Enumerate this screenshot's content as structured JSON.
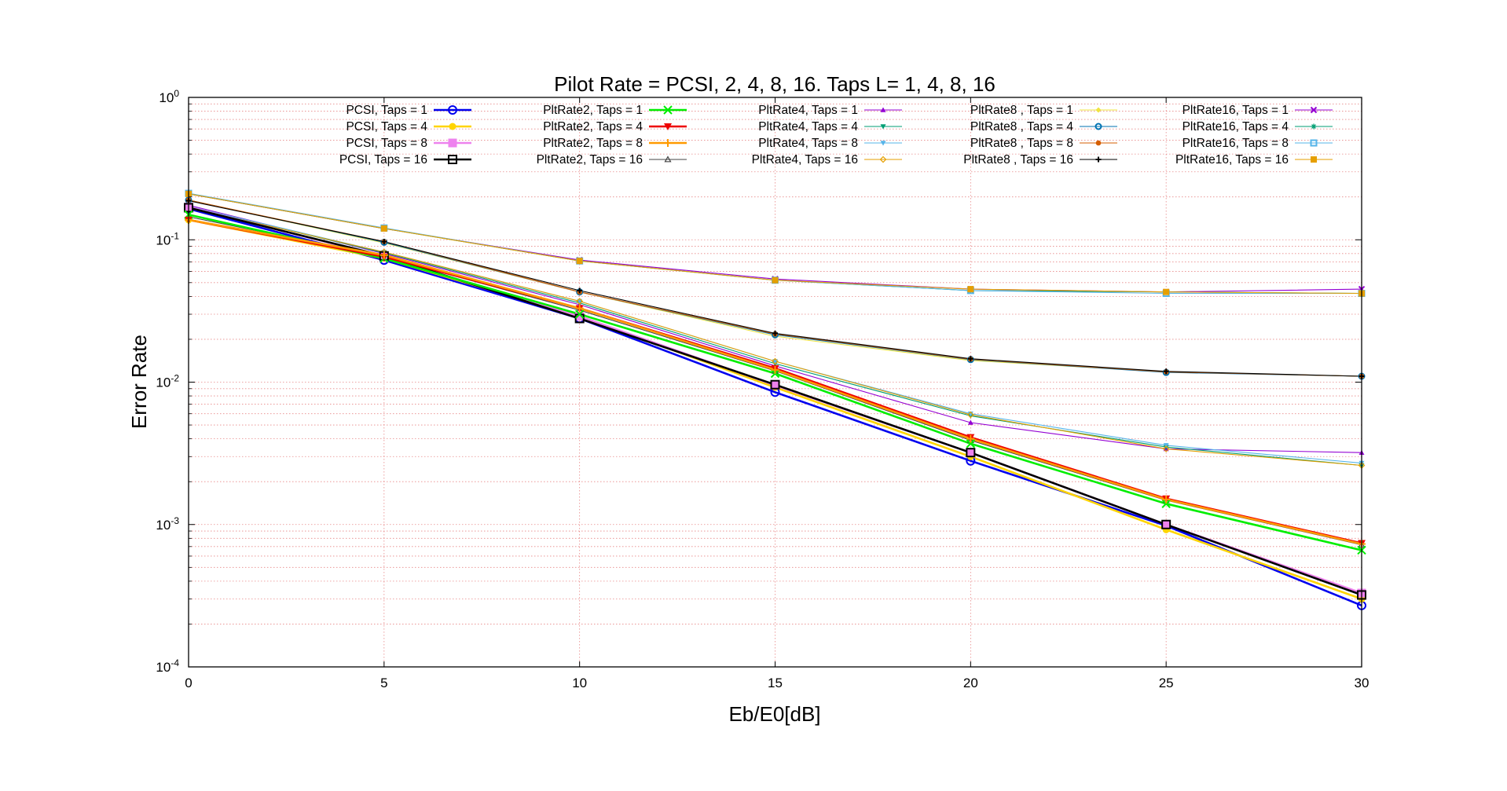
{
  "chart_data": {
    "type": "line",
    "title": "Pilot Rate = PCSI, 2, 4, 8, 16.   Taps L= 1, 4, 8, 16",
    "xlabel": "Eb/E0[dB]",
    "ylabel": "Error Rate",
    "x": [
      0,
      5,
      10,
      15,
      20,
      25,
      30
    ],
    "xlim": [
      0,
      30
    ],
    "ylim": [
      0.0001,
      1
    ],
    "yscale": "log",
    "xticks": [
      "0",
      "5",
      "10",
      "15",
      "20",
      "25",
      "30"
    ],
    "yticks": [
      {
        "base": "10",
        "exp": "0",
        "value": 1
      },
      {
        "base": "10",
        "exp": "-1",
        "value": 0.1
      },
      {
        "base": "10",
        "exp": "-2",
        "value": 0.01
      },
      {
        "base": "10",
        "exp": "-3",
        "value": 0.001
      },
      {
        "base": "10",
        "exp": "-4",
        "value": 0.0001
      }
    ],
    "grid": true,
    "legend_position": "top",
    "series": [
      {
        "name": "PCSI, Taps = 1",
        "color": "#0000ee",
        "marker": "circle",
        "width": 3,
        "values": [
          0.165,
          0.072,
          0.028,
          0.0085,
          0.0028,
          0.00098,
          0.00027
        ]
      },
      {
        "name": "PCSI, Taps = 4",
        "color": "#ffd400",
        "marker": "filled-circle",
        "width": 3,
        "values": [
          0.138,
          0.074,
          0.029,
          0.0092,
          0.003,
          0.00092,
          0.0003
        ]
      },
      {
        "name": "PCSI, Taps = 8",
        "color": "#ee82ee",
        "marker": "filled-square",
        "width": 3,
        "values": [
          0.17,
          0.076,
          0.029,
          0.0095,
          0.0032,
          0.001,
          0.00033
        ]
      },
      {
        "name": "PCSI, Taps = 16",
        "color": "#000000",
        "marker": "square",
        "width": 3,
        "values": [
          0.168,
          0.077,
          0.028,
          0.0096,
          0.0032,
          0.001,
          0.00032
        ]
      },
      {
        "name": "PltRate2, Taps = 1",
        "color": "#00ee00",
        "marker": "x",
        "width": 3,
        "values": [
          0.15,
          0.074,
          0.03,
          0.0115,
          0.0037,
          0.0014,
          0.00066
        ]
      },
      {
        "name": "PltRate2, Taps = 4",
        "color": "#ee0000",
        "marker": "filled-tri-down",
        "width": 3,
        "values": [
          0.138,
          0.076,
          0.033,
          0.0125,
          0.0041,
          0.00152,
          0.00074
        ]
      },
      {
        "name": "PltRate2, Taps = 8",
        "color": "#ff9900",
        "marker": "plus",
        "width": 3,
        "values": [
          0.138,
          0.078,
          0.033,
          0.0122,
          0.004,
          0.0015,
          0.00073
        ]
      },
      {
        "name": "PltRate2, Taps = 16",
        "color": "#444444",
        "marker": "tri-up",
        "width": 1,
        "values": [
          0.145,
          0.076,
          0.032,
          0.012,
          0.0039,
          0.00148,
          0.00072
        ]
      },
      {
        "name": "PltRate4, Taps = 1",
        "color": "#9400d3",
        "marker": "filled-tri-up",
        "width": 1,
        "values": [
          0.175,
          0.08,
          0.035,
          0.013,
          0.0052,
          0.0034,
          0.0032
        ]
      },
      {
        "name": "PltRate4, Taps = 4",
        "color": "#009e73",
        "marker": "filled-tri-down",
        "width": 1,
        "values": [
          0.17,
          0.081,
          0.036,
          0.0135,
          0.0058,
          0.0035,
          0.0026
        ]
      },
      {
        "name": "PltRate4, Taps = 8",
        "color": "#56b4e9",
        "marker": "filled-tri-down",
        "width": 1,
        "values": [
          0.172,
          0.082,
          0.037,
          0.014,
          0.006,
          0.0036,
          0.0027
        ]
      },
      {
        "name": "PltRate4, Taps = 16",
        "color": "#e69f00",
        "marker": "diamond",
        "width": 1,
        "values": [
          0.168,
          0.082,
          0.037,
          0.014,
          0.0059,
          0.0034,
          0.0026
        ]
      },
      {
        "name": "PltRate8 , Taps = 1",
        "color": "#f0e442",
        "marker": "filled-diamond",
        "width": 1,
        "values": [
          0.19,
          0.095,
          0.043,
          0.021,
          0.0142,
          0.0118,
          0.011
        ]
      },
      {
        "name": "PltRate8 , Taps = 4",
        "color": "#0072b2",
        "marker": "circle",
        "width": 1,
        "values": [
          0.19,
          0.096,
          0.043,
          0.0215,
          0.0144,
          0.0117,
          0.011
        ]
      },
      {
        "name": "PltRate8 , Taps = 8",
        "color": "#d55e00",
        "marker": "filled-circle",
        "width": 1,
        "values": [
          0.19,
          0.097,
          0.043,
          0.0218,
          0.0145,
          0.0118,
          0.011
        ]
      },
      {
        "name": "PltRate8 , Taps = 16",
        "color": "#000000",
        "marker": "plus",
        "width": 1,
        "values": [
          0.188,
          0.097,
          0.044,
          0.022,
          0.0146,
          0.0119,
          0.011
        ]
      },
      {
        "name": "PltRate16, Taps = 1",
        "color": "#9400d3",
        "marker": "x",
        "width": 1,
        "values": [
          0.21,
          0.12,
          0.072,
          0.053,
          0.045,
          0.043,
          0.045
        ]
      },
      {
        "name": "PltRate16, Taps = 4",
        "color": "#009e73",
        "marker": "star",
        "width": 1,
        "values": [
          0.21,
          0.12,
          0.071,
          0.052,
          0.044,
          0.043,
          0.042
        ]
      },
      {
        "name": "PltRate16, Taps = 8",
        "color": "#56b4e9",
        "marker": "square",
        "width": 1,
        "values": [
          0.212,
          0.121,
          0.071,
          0.052,
          0.044,
          0.042,
          0.042
        ]
      },
      {
        "name": "PltRate16, Taps = 16",
        "color": "#e69f00",
        "marker": "filled-square",
        "width": 1,
        "values": [
          0.21,
          0.12,
          0.071,
          0.052,
          0.045,
          0.043,
          0.042
        ]
      }
    ]
  }
}
